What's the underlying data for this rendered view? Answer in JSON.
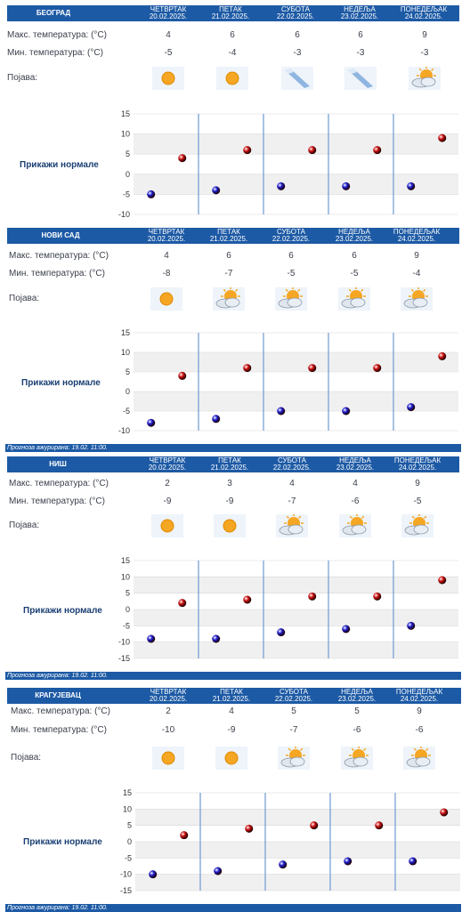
{
  "legend_label": "Прикажи нормале",
  "row_labels": {
    "max": "Макс. температура: (°C)",
    "min": "Мин. температура: (°C)",
    "phenomenon": "Појава:"
  },
  "days": [
    {
      "name": "ЧЕТВРТАК",
      "date": "20.02.2025."
    },
    {
      "name": "ПЕТАК",
      "date": "21.02.2025."
    },
    {
      "name": "СУБОТА",
      "date": "22.02.2025."
    },
    {
      "name": "НЕДЕЉА",
      "date": "23.02.2025."
    },
    {
      "name": "ПОНЕДЕЉАК",
      "date": "24.02.2025."
    }
  ],
  "colors": {
    "header": "#1d5aa5",
    "max_dot": "#cc1010",
    "min_dot": "#1a1acc"
  },
  "cities": [
    {
      "name": "БЕОГРАД",
      "max": [
        4,
        6,
        6,
        6,
        9
      ],
      "min": [
        -5,
        -4,
        -3,
        -3,
        -3
      ],
      "icons": [
        "sun-icon",
        "sun-icon",
        "sleet-icon",
        "sleet-icon",
        "sun-cloud-icon"
      ],
      "updated": ""
    },
    {
      "name": "НОВИ САД",
      "max": [
        4,
        6,
        6,
        6,
        9
      ],
      "min": [
        -8,
        -7,
        -5,
        -5,
        -4
      ],
      "icons": [
        "sun-icon",
        "sun-cloud-icon",
        "sun-cloud-icon",
        "sun-cloud-icon",
        "sun-cloud-icon"
      ],
      "updated": "Прогноза ажурирана:  19.02. 11:00."
    },
    {
      "name": "НИШ",
      "max": [
        2,
        3,
        4,
        4,
        9
      ],
      "min": [
        -9,
        -9,
        -7,
        -6,
        -5
      ],
      "icons": [
        "sun-icon",
        "sun-icon",
        "sun-cloud-icon",
        "sun-cloud-icon",
        "sun-cloud-icon"
      ],
      "updated": "Прогноза ажурирана:  19.02. 11:00."
    },
    {
      "name": "КРАГУЈЕВАЦ",
      "max": [
        2,
        4,
        5,
        5,
        9
      ],
      "min": [
        -10,
        -9,
        -7,
        -6,
        -6
      ],
      "icons": [
        "sun-icon",
        "sun-icon",
        "sun-cloud-icon",
        "sun-cloud-icon",
        "sun-cloud-icon"
      ],
      "updated": "Прогноза ажурирана:  19.02. 11:00."
    }
  ],
  "chart_data": [
    {
      "type": "scatter",
      "categories": [
        "ЧЕТВРТАК",
        "ПЕТАК",
        "СУБОТА",
        "НЕДЕЉА",
        "ПОНЕДЕЉАК"
      ],
      "series": [
        {
          "values": [
            4,
            6,
            6,
            6,
            9
          ]
        },
        {
          "values": [
            -5,
            -4,
            -3,
            -3,
            -3
          ]
        }
      ],
      "ylim": [
        -10,
        15
      ],
      "yticks": [
        15,
        10,
        5,
        0,
        -5,
        -10
      ]
    },
    {
      "type": "scatter",
      "categories": [
        "ЧЕТВРТАК",
        "ПЕТАК",
        "СУБОТА",
        "НЕДЕЉА",
        "ПОНЕДЕЉАК"
      ],
      "series": [
        {
          "values": [
            4,
            6,
            6,
            6,
            9
          ]
        },
        {
          "values": [
            -8,
            -7,
            -5,
            -5,
            -4
          ]
        }
      ],
      "ylim": [
        -10,
        15
      ],
      "yticks": [
        15,
        10,
        5,
        0,
        -5,
        -10
      ]
    },
    {
      "type": "scatter",
      "categories": [
        "ЧЕТВРТАК",
        "ПЕТАК",
        "СУБОТА",
        "НЕДЕЉА",
        "ПОНЕДЕЉАК"
      ],
      "series": [
        {
          "values": [
            2,
            3,
            4,
            4,
            9
          ]
        },
        {
          "values": [
            -9,
            -9,
            -7,
            -6,
            -5
          ]
        }
      ],
      "ylim": [
        -15,
        15
      ],
      "yticks": [
        15,
        10,
        5,
        0,
        -5,
        -10,
        -15
      ]
    },
    {
      "type": "scatter",
      "categories": [
        "ЧЕТВРТАК",
        "ПЕТАК",
        "СУБОТА",
        "НЕДЕЉА",
        "ПОНЕДЕЉАК"
      ],
      "series": [
        {
          "values": [
            2,
            4,
            5,
            5,
            9
          ]
        },
        {
          "values": [
            -10,
            -9,
            -7,
            -6,
            -6
          ]
        }
      ],
      "ylim": [
        -15,
        15
      ],
      "yticks": [
        15,
        10,
        5,
        0,
        -5,
        -10,
        -15
      ]
    }
  ]
}
